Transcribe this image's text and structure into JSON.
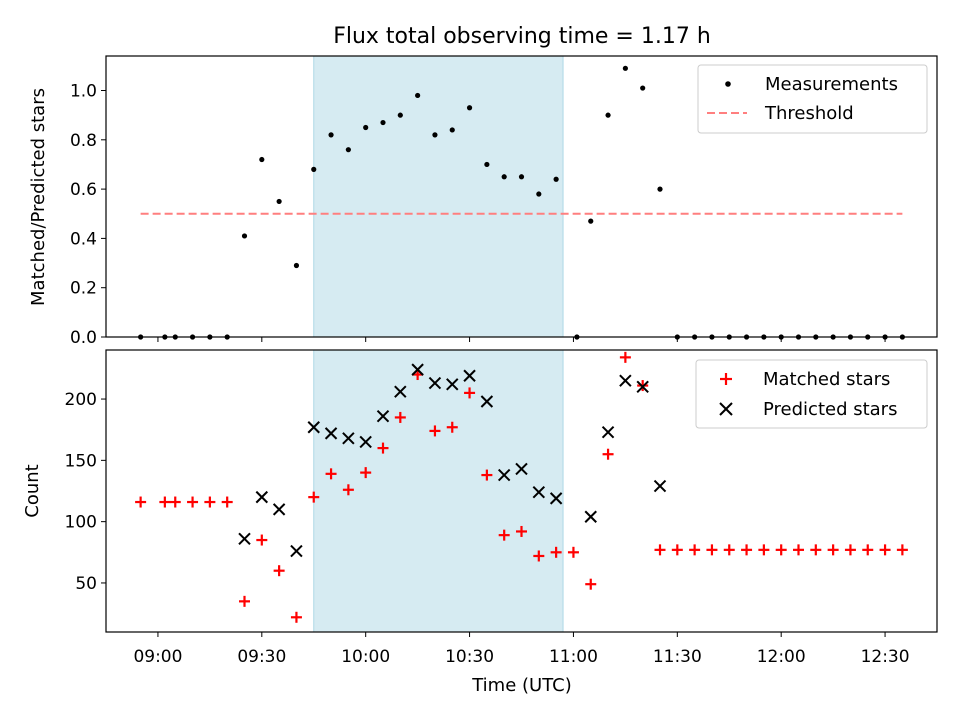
{
  "chart_data": [
    {
      "type": "scatter",
      "title": "Flux total observing time = 1.17 h",
      "ylabel": "Matched/Predicted stars",
      "ylim": [
        0,
        1.14
      ],
      "yticks": [
        "0.0",
        "0.2",
        "0.4",
        "0.6",
        "0.8",
        "1.0"
      ],
      "shaded_interval": [
        "09:45",
        "10:57"
      ],
      "threshold": {
        "name": "Threshold",
        "value": 0.5,
        "x_range": [
          "08:55",
          "12:35"
        ],
        "color": "#ff7f7f"
      },
      "legend": {
        "position": "top-right",
        "entries": [
          "Measurements",
          "Threshold"
        ]
      },
      "series": [
        {
          "name": "Measurements",
          "color": "#000000",
          "x": [
            "08:55",
            "09:02",
            "09:05",
            "09:10",
            "09:15",
            "09:20",
            "09:25",
            "09:30",
            "09:35",
            "09:40",
            "09:45",
            "09:50",
            "09:55",
            "10:00",
            "10:05",
            "10:10",
            "10:15",
            "10:20",
            "10:25",
            "10:30",
            "10:35",
            "10:40",
            "10:45",
            "10:50",
            "10:55",
            "11:01",
            "11:05",
            "11:10",
            "11:15",
            "11:20",
            "11:25",
            "11:30",
            "11:35",
            "11:40",
            "11:45",
            "11:50",
            "11:55",
            "12:00",
            "12:05",
            "12:10",
            "12:15",
            "12:20",
            "12:25",
            "12:30",
            "12:35"
          ],
          "values": [
            0,
            0,
            0,
            0,
            0,
            0,
            0.41,
            0.72,
            0.55,
            0.29,
            0.68,
            0.82,
            0.76,
            0.85,
            0.87,
            0.9,
            0.98,
            0.82,
            0.84,
            0.93,
            0.7,
            0.65,
            0.65,
            0.58,
            0.64,
            0,
            0.47,
            0.9,
            1.09,
            1.01,
            0.6,
            0,
            0,
            0,
            0,
            0,
            0,
            0,
            0,
            0,
            0,
            0,
            0,
            0,
            0
          ]
        }
      ]
    },
    {
      "type": "scatter",
      "xlabel": "Time (UTC)",
      "ylabel": "Count",
      "ylim": [
        10,
        240
      ],
      "yticks": [
        "50",
        "100",
        "150",
        "200"
      ],
      "xticks": [
        "09:00",
        "09:30",
        "10:00",
        "10:30",
        "11:00",
        "11:30",
        "12:00",
        "12:30"
      ],
      "xlim": [
        "08:45",
        "12:45"
      ],
      "shaded_interval": [
        "09:45",
        "10:57"
      ],
      "legend": {
        "position": "top-right",
        "entries": [
          "Matched stars",
          "Predicted stars"
        ]
      },
      "series": [
        {
          "name": "Matched stars",
          "color": "#ff0000",
          "marker": "plus",
          "x": [
            "08:55",
            "09:02",
            "09:05",
            "09:10",
            "09:15",
            "09:20",
            "09:25",
            "09:30",
            "09:35",
            "09:40",
            "09:45",
            "09:50",
            "09:55",
            "10:00",
            "10:05",
            "10:10",
            "10:15",
            "10:20",
            "10:25",
            "10:30",
            "10:35",
            "10:40",
            "10:45",
            "10:50",
            "10:55",
            "11:00",
            "11:05",
            "11:10",
            "11:15",
            "11:20",
            "11:25",
            "11:30",
            "11:35",
            "11:40",
            "11:45",
            "11:50",
            "11:55",
            "12:00",
            "12:05",
            "12:10",
            "12:15",
            "12:20",
            "12:25",
            "12:30",
            "12:35"
          ],
          "values": [
            116,
            116,
            116,
            116,
            116,
            116,
            35,
            85,
            60,
            22,
            120,
            139,
            126,
            140,
            160,
            185,
            220,
            174,
            177,
            205,
            138,
            89,
            92,
            72,
            75,
            75,
            49,
            155,
            234,
            211,
            77,
            77,
            77,
            77,
            77,
            77,
            77,
            77,
            77,
            77,
            77,
            77,
            77,
            77,
            77
          ]
        },
        {
          "name": "Predicted stars",
          "color": "#000000",
          "marker": "x",
          "x": [
            "09:25",
            "09:30",
            "09:35",
            "09:40",
            "09:45",
            "09:50",
            "09:55",
            "10:00",
            "10:05",
            "10:10",
            "10:15",
            "10:20",
            "10:25",
            "10:30",
            "10:35",
            "10:40",
            "10:45",
            "10:50",
            "10:55",
            "11:05",
            "11:10",
            "11:15",
            "11:20",
            "11:25"
          ],
          "values": [
            86,
            120,
            110,
            76,
            177,
            172,
            168,
            165,
            186,
            206,
            224,
            213,
            212,
            219,
            198,
            138,
            143,
            124,
            119,
            104,
            173,
            215,
            210,
            129
          ]
        }
      ]
    }
  ]
}
